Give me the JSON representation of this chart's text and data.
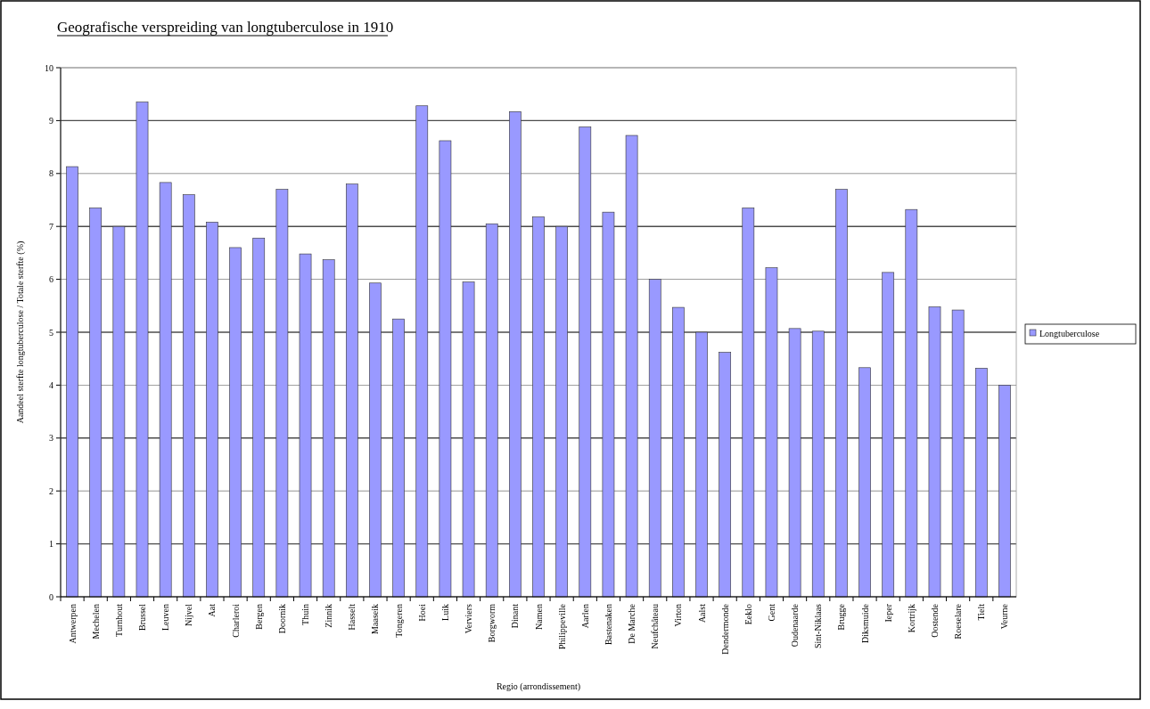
{
  "chart_data": {
    "type": "bar",
    "title": "Geografische verspreiding van longtuberculose in 1910",
    "xlabel": "Regio (arrondissement)",
    "ylabel": "Aandeel sterfte longtuberculose / Totale sterfte (%)",
    "categories": [
      "Antwerpen",
      "Mechelen",
      "Turnhout",
      "Brussel",
      "Leuven",
      "Nijvel",
      "Aat",
      "Charleroi",
      "Bergen",
      "Doornik",
      "Thuin",
      "Zinnik",
      "Hasselt",
      "Maaseik",
      "Tongeren",
      "Hoei",
      "Luik",
      "Verviers",
      "Borgworm",
      "Dinant",
      "Namen",
      "Philippeville",
      "Aarlen",
      "Bastenaken",
      "De Marche",
      "Neufchâteau",
      "Virton",
      "Aalst",
      "Dendermonde",
      "Eeklo",
      "Gent",
      "Oudenaarde",
      "Sint-Niklaas",
      "Brugge",
      "Diksmuide",
      "Ieper",
      "Kortrijk",
      "Oostende",
      "Roeselare",
      "Tielt",
      "Veurne"
    ],
    "series": [
      {
        "name": "Longtuberculose",
        "color": "#9999ff",
        "values": [
          8.13,
          7.35,
          7.0,
          9.35,
          7.83,
          7.6,
          7.08,
          6.6,
          6.78,
          7.7,
          6.48,
          6.37,
          7.8,
          5.93,
          5.25,
          9.28,
          8.62,
          5.95,
          7.05,
          9.17,
          7.18,
          7.0,
          8.88,
          7.27,
          8.72,
          6.0,
          5.47,
          5.0,
          4.62,
          7.35,
          6.22,
          5.07,
          5.02,
          7.7,
          4.33,
          6.13,
          7.32,
          5.48,
          5.42,
          4.32,
          4.0
        ]
      }
    ],
    "ylim": [
      0,
      10
    ],
    "yticks": [
      0,
      1,
      2,
      3,
      4,
      5,
      6,
      7,
      8,
      9,
      10
    ],
    "grid": "y",
    "legend": "right"
  }
}
